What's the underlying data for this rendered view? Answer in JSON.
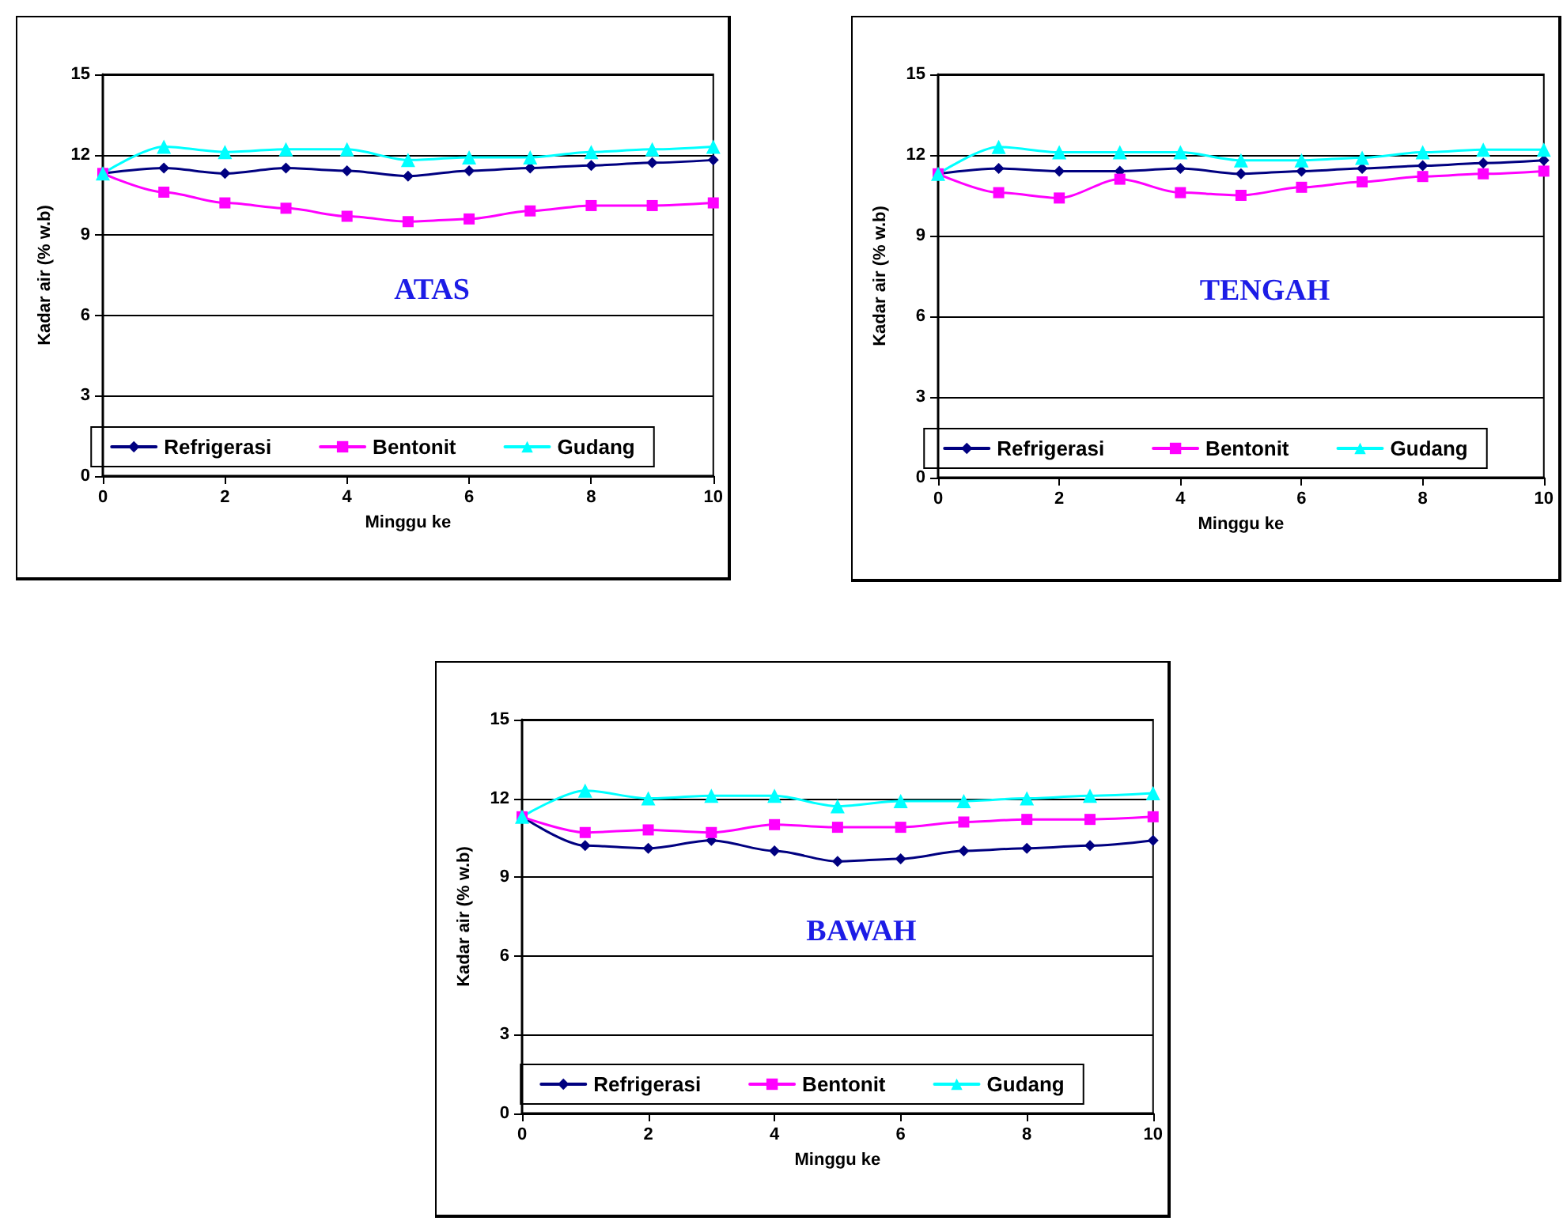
{
  "chart_data": [
    {
      "type": "line",
      "title": "ATAS",
      "xlabel": "Minggu ke",
      "ylabel": "Kadar air (% w.b)",
      "x": [
        0,
        1,
        2,
        3,
        4,
        5,
        6,
        7,
        8,
        9,
        10
      ],
      "xlim": [
        0,
        10
      ],
      "xticks": [
        0,
        2,
        4,
        6,
        8,
        10
      ],
      "ylim": [
        0,
        15
      ],
      "yticks": [
        0,
        3,
        6,
        9,
        12,
        15
      ],
      "grid": "y",
      "legend": "bottom",
      "line_style": "solid",
      "series": [
        {
          "name": "Refrigerasi",
          "color": "#000080",
          "marker": "diamond",
          "values": [
            11.3,
            11.5,
            11.3,
            11.5,
            11.4,
            11.2,
            11.4,
            11.5,
            11.6,
            11.7,
            11.8
          ]
        },
        {
          "name": "Bentonit",
          "color": "#ff00ff",
          "marker": "square",
          "values": [
            11.3,
            10.6,
            10.2,
            10.0,
            9.7,
            9.5,
            9.6,
            9.9,
            10.1,
            10.1,
            10.2
          ]
        },
        {
          "name": "Gudang",
          "color": "#00ffff",
          "marker": "triangle",
          "values": [
            11.3,
            12.3,
            12.1,
            12.2,
            12.2,
            11.8,
            11.9,
            11.9,
            12.1,
            12.2,
            12.3
          ]
        }
      ]
    },
    {
      "type": "line",
      "title": "TENGAH",
      "xlabel": "Minggu ke",
      "ylabel": "Kadar air (% w.b)",
      "x": [
        0,
        1,
        2,
        3,
        4,
        5,
        6,
        7,
        8,
        9,
        10
      ],
      "xlim": [
        0,
        10
      ],
      "xticks": [
        0,
        2,
        4,
        6,
        8,
        10
      ],
      "ylim": [
        0,
        15
      ],
      "yticks": [
        0,
        3,
        6,
        9,
        12,
        15
      ],
      "grid": "y",
      "legend": "bottom",
      "line_style": "solid",
      "series": [
        {
          "name": "Refrigerasi",
          "color": "#000080",
          "marker": "diamond",
          "values": [
            11.3,
            11.5,
            11.4,
            11.4,
            11.5,
            11.3,
            11.4,
            11.5,
            11.6,
            11.7,
            11.8
          ]
        },
        {
          "name": "Bentonit",
          "color": "#ff00ff",
          "marker": "square",
          "values": [
            11.3,
            10.6,
            10.4,
            11.1,
            10.6,
            10.5,
            10.8,
            11.0,
            11.2,
            11.3,
            11.4
          ]
        },
        {
          "name": "Gudang",
          "color": "#00ffff",
          "marker": "triangle",
          "values": [
            11.3,
            12.3,
            12.1,
            12.1,
            12.1,
            11.8,
            11.8,
            11.9,
            12.1,
            12.2,
            12.2
          ]
        }
      ]
    },
    {
      "type": "line",
      "title": "BAWAH",
      "xlabel": "Minggu ke",
      "ylabel": "Kadar air (% w.b)",
      "x": [
        0,
        1,
        2,
        3,
        4,
        5,
        6,
        7,
        8,
        9,
        10
      ],
      "xlim": [
        0,
        10
      ],
      "xticks": [
        0,
        2,
        4,
        6,
        8,
        10
      ],
      "ylim": [
        0,
        15
      ],
      "yticks": [
        0,
        3,
        6,
        9,
        12,
        15
      ],
      "grid": "y",
      "legend": "bottom",
      "line_style": "solid",
      "series": [
        {
          "name": "Refrigerasi",
          "color": "#000080",
          "marker": "diamond",
          "values": [
            11.3,
            10.2,
            10.1,
            10.4,
            10.0,
            9.6,
            9.7,
            10.0,
            10.1,
            10.2,
            10.4
          ]
        },
        {
          "name": "Bentonit",
          "color": "#ff00ff",
          "marker": "square",
          "values": [
            11.3,
            10.7,
            10.8,
            10.7,
            11.0,
            10.9,
            10.9,
            11.1,
            11.2,
            11.2,
            11.3
          ]
        },
        {
          "name": "Gudang",
          "color": "#00ffff",
          "marker": "triangle",
          "values": [
            11.3,
            12.3,
            12.0,
            12.1,
            12.1,
            11.7,
            11.9,
            11.9,
            12.0,
            12.1,
            12.2
          ]
        }
      ]
    }
  ]
}
